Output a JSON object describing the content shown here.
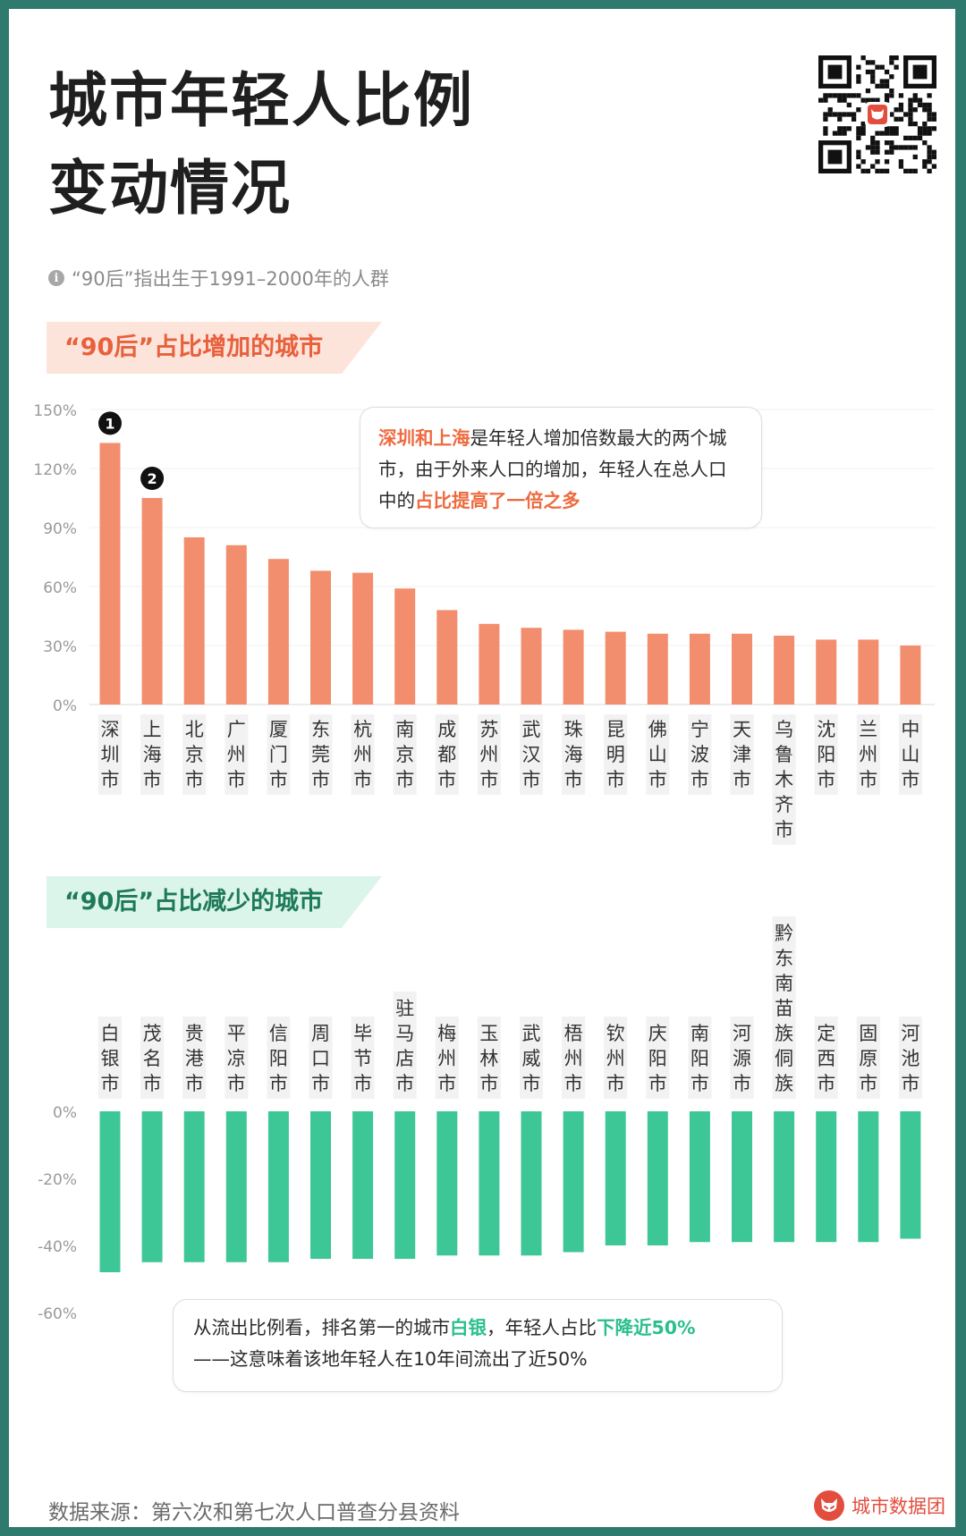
{
  "title": {
    "line1": "城市年轻人比例",
    "line2": "变动情况"
  },
  "note": {
    "icon": "info-icon",
    "text": "“90后”指出生于1991–2000年的人群"
  },
  "colors": {
    "increase": "#f28e6e",
    "decrease": "#3ec796",
    "accent_orange": "#ee6a3f",
    "accent_green": "#2bbf8e"
  },
  "sections": {
    "increase_title": "“90后”占比增加的城市",
    "decrease_title": "“90后”占比减少的城市"
  },
  "callout_increase": {
    "a": "深圳和上海",
    "b": "是年轻人增加倍数最大的两个城市，由于外来人口的增加，年轻人在总人口中的",
    "c": "占比提高了一倍之多"
  },
  "callout_decrease": {
    "a": "从流出比例看，排名第一的城市",
    "b": "白银",
    "c": "，年轻人占比",
    "d": "下降近50%",
    "e": "——这意味着该地年轻人在10年间流出了近50%"
  },
  "chart_data": [
    {
      "type": "bar",
      "title": "“90后”占比增加的城市",
      "categories": [
        "深圳市",
        "上海市",
        "北京市",
        "广州市",
        "厦门市",
        "东莞市",
        "杭州市",
        "南京市",
        "成都市",
        "苏州市",
        "武汉市",
        "珠海市",
        "昆明市",
        "佛山市",
        "宁波市",
        "天津市",
        "乌鲁木齐市",
        "沈阳市",
        "兰州市",
        "中山市"
      ],
      "values": [
        133,
        105,
        85,
        81,
        74,
        68,
        67,
        59,
        48,
        41,
        39,
        38,
        37,
        36,
        36,
        36,
        35,
        33,
        33,
        30
      ],
      "unit": "%",
      "ylim": [
        0,
        150
      ],
      "yticks": [
        "0%",
        "30%",
        "60%",
        "90%",
        "120%",
        "150%"
      ],
      "rank_markers": [
        {
          "index": 0,
          "label": "1"
        },
        {
          "index": 1,
          "label": "2"
        }
      ],
      "grid": true
    },
    {
      "type": "bar",
      "title": "“90后”占比减少的城市",
      "categories": [
        "白银市",
        "茂名市",
        "贵港市",
        "平凉市",
        "信阳市",
        "周口市",
        "毕节市",
        "驻马店市",
        "梅州市",
        "玉林市",
        "武威市",
        "梧州市",
        "钦州市",
        "庆阳市",
        "南阳市",
        "河源市",
        "黔东南苗族侗族",
        "定西市",
        "固原市",
        "河池市"
      ],
      "values": [
        -48,
        -45,
        -45,
        -45,
        -45,
        -44,
        -44,
        -44,
        -43,
        -43,
        -43,
        -42,
        -40,
        -40,
        -39,
        -39,
        -39,
        -39,
        -39,
        -38
      ],
      "unit": "%",
      "ylim": [
        -60,
        0
      ],
      "yticks": [
        "0%",
        "-20%",
        "-40%",
        "-60%"
      ],
      "grid": false
    }
  ],
  "source": "数据来源：第六次和第七次人口普查分县资料",
  "brand": {
    "logo": "fox-logo-icon",
    "name": "城市数据团"
  },
  "qr": {
    "icon": "qr-code-icon"
  }
}
